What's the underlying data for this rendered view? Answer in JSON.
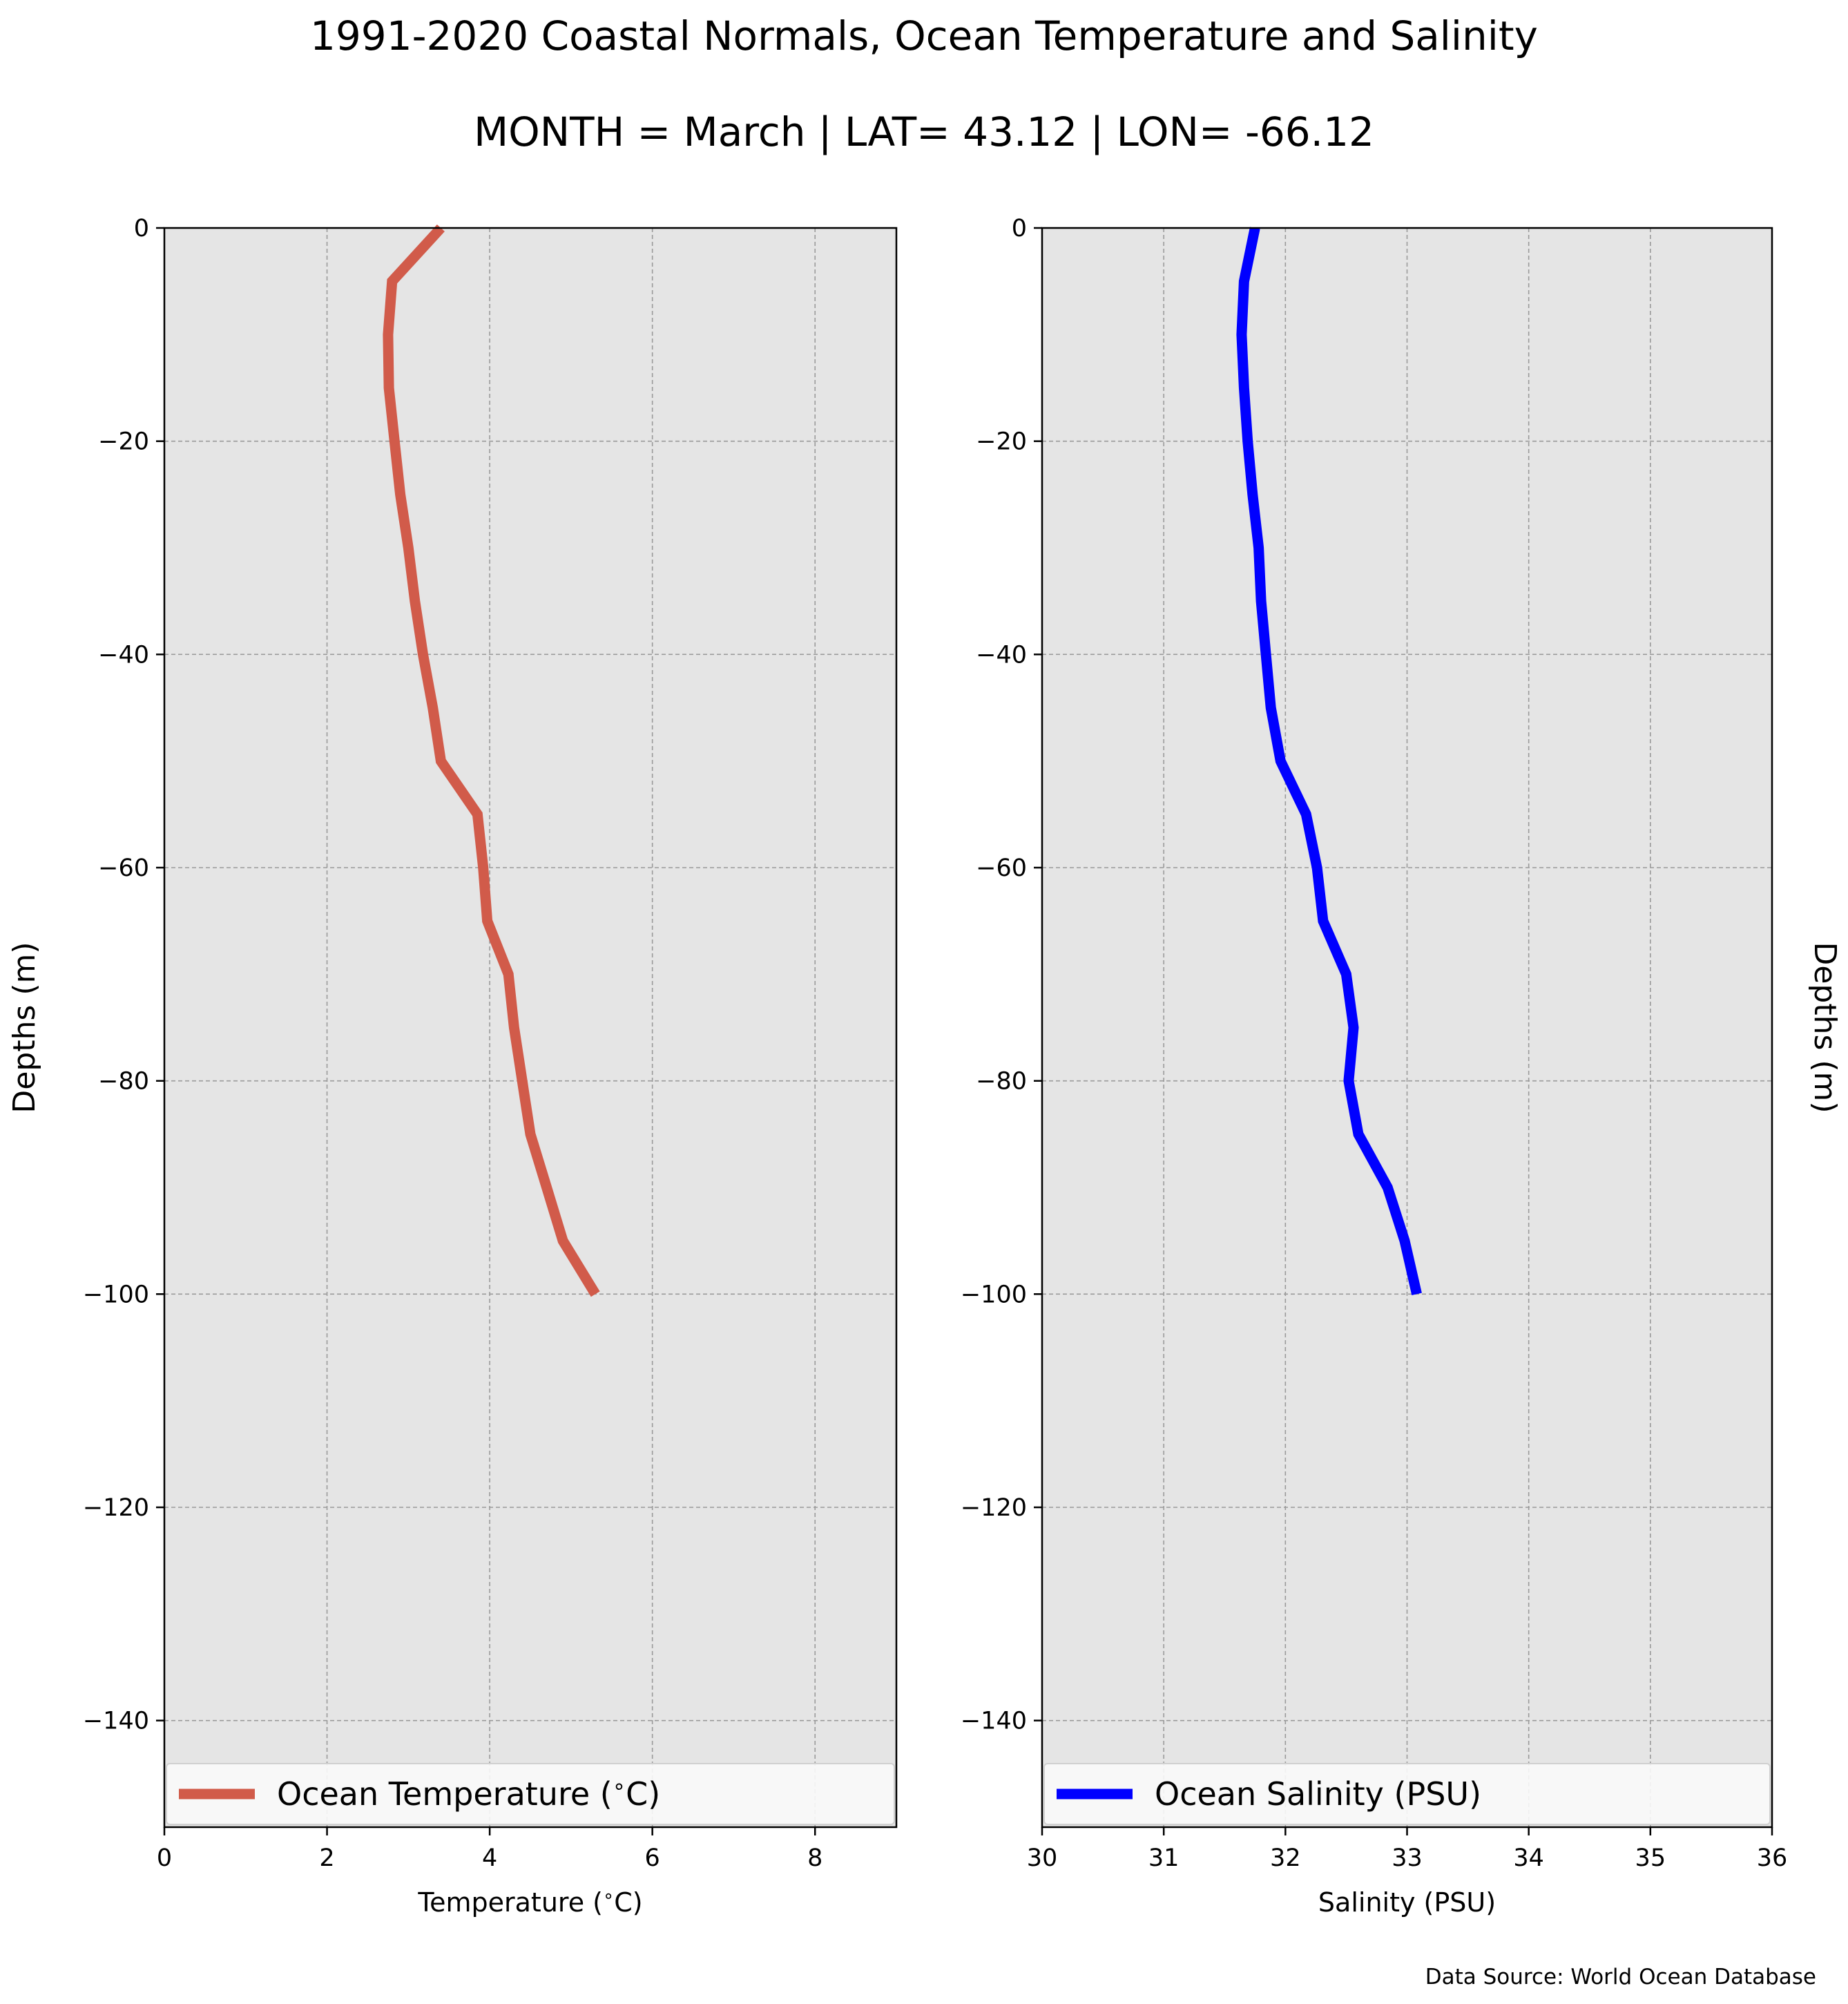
{
  "title": "1991-2020 Coastal Normals, Ocean Temperature and Salinity",
  "subtitle": "MONTH = March | LAT= 43.12 | LON= -66.12",
  "source_note": "Data Source: World Ocean Database",
  "colors": {
    "plot_background": "#e5e5e5",
    "grid": "#9a9a9a",
    "temperature_line": "#d15b4a",
    "salinity_line": "#0000ff"
  },
  "chart_data": [
    {
      "type": "line",
      "ylabel": "Depths (m)",
      "xlabel": "Temperature ($^\\circ$C)",
      "xlim": [
        0,
        9
      ],
      "ylim": [
        -150,
        0
      ],
      "xticks": [
        0,
        2,
        4,
        6,
        8
      ],
      "xtick_labels": [
        "0",
        "2",
        "4",
        "6",
        "8"
      ],
      "yticks": [
        0,
        -20,
        -40,
        -60,
        -80,
        -100,
        -120,
        -140
      ],
      "ytick_labels": [
        "0",
        "−20",
        "−40",
        "−60",
        "−80",
        "−100",
        "−120",
        "−140"
      ],
      "grid": true,
      "legend_position": "bottom",
      "series": [
        {
          "name": "Ocean Temperature ($^\\circ$C)",
          "color": "#d15b4a",
          "x": [
            3.4,
            2.8,
            2.75,
            2.76,
            2.83,
            2.9,
            3.0,
            3.08,
            3.18,
            3.3,
            3.4,
            3.85,
            3.92,
            3.97,
            4.23,
            4.3,
            4.4,
            4.5,
            4.7,
            4.9,
            5.3
          ],
          "y": [
            0,
            -5,
            -10,
            -15,
            -20,
            -25,
            -30,
            -35,
            -40,
            -45,
            -50,
            -55,
            -60,
            -65,
            -70,
            -75,
            -80,
            -85,
            -90,
            -95,
            -100
          ]
        }
      ]
    },
    {
      "type": "line",
      "ylabel": "Depths (m)",
      "xlabel": "Salinity (PSU)",
      "xlim": [
        30,
        36
      ],
      "ylim": [
        -150,
        0
      ],
      "xticks": [
        30,
        31,
        32,
        33,
        34,
        35,
        36
      ],
      "xtick_labels": [
        "30",
        "31",
        "32",
        "33",
        "34",
        "35",
        "36"
      ],
      "yticks": [
        0,
        -20,
        -40,
        -60,
        -80,
        -100,
        -120,
        -140
      ],
      "ytick_labels": [
        "0",
        "−20",
        "−40",
        "−60",
        "−80",
        "−100",
        "−120",
        "−140"
      ],
      "grid": true,
      "legend_position": "bottom",
      "series": [
        {
          "name": "Ocean Salinity (PSU)",
          "color": "#0000ff",
          "x": [
            31.75,
            31.66,
            31.64,
            31.66,
            31.69,
            31.73,
            31.78,
            31.8,
            31.84,
            31.88,
            31.96,
            32.17,
            32.26,
            32.31,
            32.5,
            32.56,
            32.52,
            32.6,
            32.84,
            32.98,
            33.08
          ],
          "y": [
            0,
            -5,
            -10,
            -15,
            -20,
            -25,
            -30,
            -35,
            -40,
            -45,
            -50,
            -55,
            -60,
            -65,
            -70,
            -75,
            -80,
            -85,
            -90,
            -95,
            -100
          ]
        }
      ]
    }
  ]
}
